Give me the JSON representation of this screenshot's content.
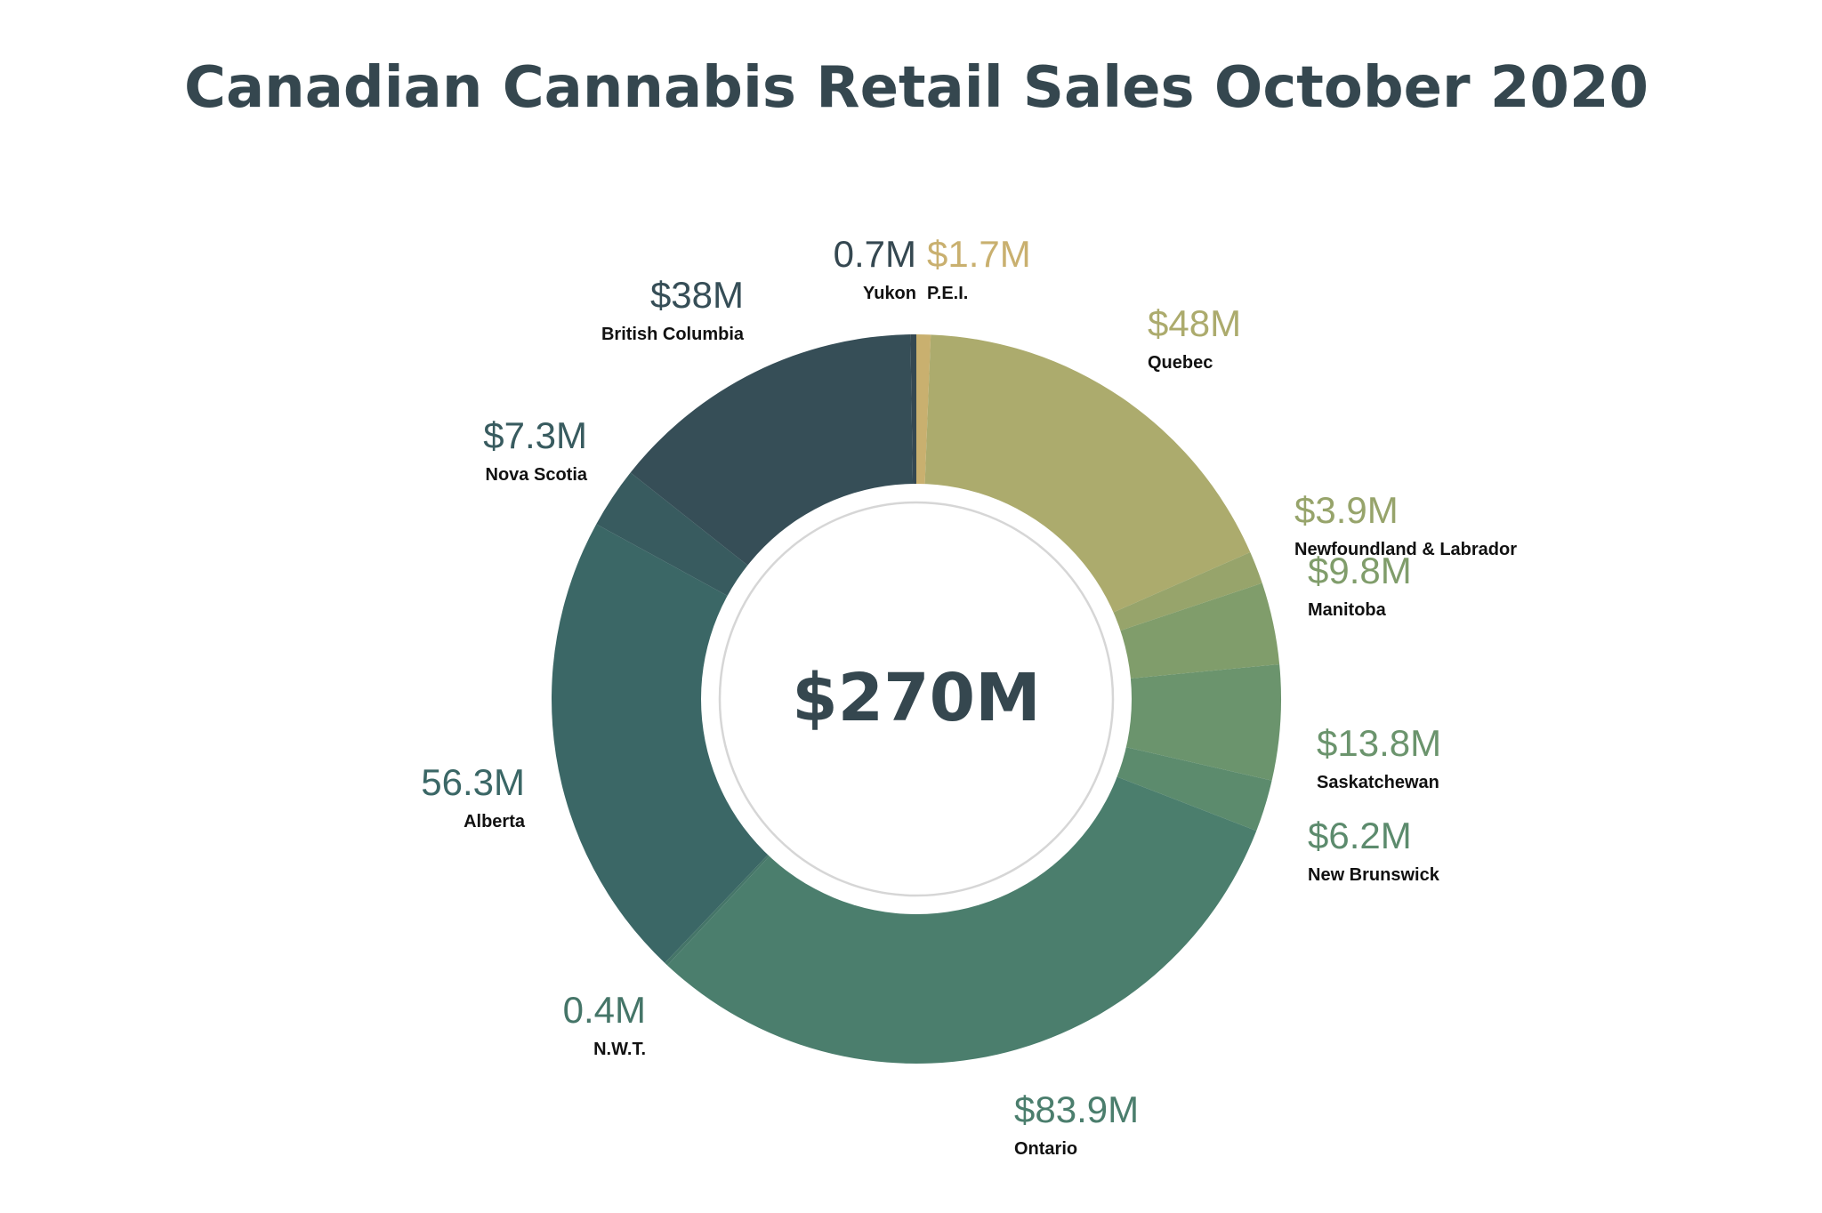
{
  "chart_data": {
    "type": "pie",
    "variant": "donut",
    "title": "Canadian Cannabis Retail Sales October 2020",
    "center_label": "$270M",
    "total": 270,
    "unit": "Millions CAD",
    "slices": [
      {
        "name": "P.E.I.",
        "value": 1.7,
        "label": "$1.7M",
        "color": "#c9b06f",
        "label_color": "#c9b06f"
      },
      {
        "name": "Quebec",
        "value": 48,
        "label": "$48M",
        "color": "#acab6d",
        "label_color": "#acab6d"
      },
      {
        "name": "Newfoundland & Labrador",
        "value": 3.9,
        "label": "$3.9M",
        "color": "#97a46b",
        "label_color": "#97a46b"
      },
      {
        "name": "Manitoba",
        "value": 9.8,
        "label": "$9.8M",
        "color": "#809d6b",
        "label_color": "#809d6b"
      },
      {
        "name": "Saskatchewan",
        "value": 13.8,
        "label": "$13.8M",
        "color": "#6b946d",
        "label_color": "#6b946d"
      },
      {
        "name": "New Brunswick",
        "value": 6.2,
        "label": "$6.2M",
        "color": "#5c8b6d",
        "label_color": "#5c8b6d"
      },
      {
        "name": "Ontario",
        "value": 83.9,
        "label": "$83.9M",
        "color": "#4b7e6d",
        "label_color": "#4b7e6d"
      },
      {
        "name": "N.W.T.",
        "value": 0.4,
        "label": "0.4M",
        "color": "#457568",
        "label_color": "#457568"
      },
      {
        "name": "Alberta",
        "value": 56.3,
        "label": "56.3M",
        "color": "#3b6766",
        "label_color": "#3b6766"
      },
      {
        "name": "Nova Scotia",
        "value": 7.3,
        "label": "$7.3M",
        "color": "#385b5f",
        "label_color": "#385b5f"
      },
      {
        "name": "British Columbia",
        "value": 38,
        "label": "$38M",
        "color": "#364e57",
        "label_color": "#364e57"
      },
      {
        "name": "Yukon",
        "value": 0.7,
        "label": "0.7M",
        "color": "#354851",
        "label_color": "#354851"
      }
    ],
    "legend": "none"
  }
}
